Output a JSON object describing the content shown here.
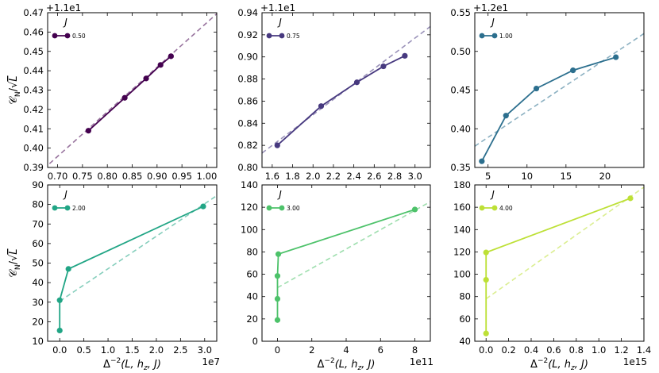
{
  "chart_data": [
    {
      "type": "line",
      "legend_title": "J",
      "series_label": "0.50",
      "color": "#44014f",
      "x": [
        0.762,
        0.835,
        0.878,
        0.907,
        0.928
      ],
      "y": [
        0.409,
        0.426,
        0.436,
        0.443,
        0.4475
      ],
      "fit": {
        "x0": 0.66,
        "y0": 0.3865,
        "x1": 1.025,
        "y1": 0.4706
      },
      "xlim": [
        0.68,
        1.02
      ],
      "ylim": [
        0.39,
        0.47
      ],
      "xticks": [
        0.7,
        0.75,
        0.8,
        0.85,
        0.9,
        0.95,
        1.0
      ],
      "xtick_labels": [
        "0.70",
        "0.75",
        "0.80",
        "0.85",
        "0.90",
        "0.95",
        "1.00"
      ],
      "yticks": [
        0.39,
        0.4,
        0.41,
        0.42,
        0.43,
        0.44,
        0.45,
        0.46,
        0.47
      ],
      "ytick_labels": [
        "0.39",
        "0.40",
        "0.41",
        "0.42",
        "0.43",
        "0.44",
        "0.45",
        "0.46",
        "0.47"
      ],
      "offset_label": "+1.1e1",
      "xlabel": "",
      "ylabel": "C_N/√L"
    },
    {
      "type": "line",
      "legend_title": "J",
      "series_label": "0.75",
      "color": "#47397f",
      "x": [
        1.65,
        2.08,
        2.43,
        2.69,
        2.9
      ],
      "y": [
        0.82,
        0.8555,
        0.877,
        0.8915,
        0.901
      ],
      "fit": {
        "x0": 1.5,
        "y0": 0.813,
        "x1": 3.15,
        "y1": 0.9275
      },
      "xlim": [
        1.5,
        3.15
      ],
      "ylim": [
        0.8,
        0.94
      ],
      "xticks": [
        1.6,
        1.8,
        2.0,
        2.2,
        2.4,
        2.6,
        2.8,
        3.0
      ],
      "xtick_labels": [
        "1.6",
        "1.8",
        "2.0",
        "2.2",
        "2.4",
        "2.6",
        "2.8",
        "3.0"
      ],
      "yticks": [
        0.8,
        0.82,
        0.84,
        0.86,
        0.88,
        0.9,
        0.92,
        0.94
      ],
      "ytick_labels": [
        "0.80",
        "0.82",
        "0.84",
        "0.86",
        "0.88",
        "0.90",
        "0.92",
        "0.94"
      ],
      "offset_label": "+1.1e1",
      "xlabel": "",
      "ylabel": ""
    },
    {
      "type": "line",
      "legend_title": "J",
      "series_label": "1.00",
      "color": "#2c6f8e",
      "x": [
        4.2,
        7.3,
        11.2,
        15.9,
        21.4
      ],
      "y": [
        0.358,
        0.417,
        0.452,
        0.4755,
        0.4925
      ],
      "fit": {
        "x0": 3.3,
        "y0": 0.3775,
        "x1": 25.0,
        "y1": 0.523
      },
      "xlim": [
        3.3,
        25.0
      ],
      "ylim": [
        0.35,
        0.55
      ],
      "xticks": [
        5,
        10,
        15,
        20
      ],
      "xtick_labels": [
        "5",
        "10",
        "15",
        "20"
      ],
      "yticks": [
        0.35,
        0.4,
        0.45,
        0.5,
        0.55
      ],
      "ytick_labels": [
        "0.35",
        "0.40",
        "0.45",
        "0.50",
        "0.55"
      ],
      "offset_label": "+1.2e1",
      "xlabel": "",
      "ylabel": ""
    },
    {
      "type": "line",
      "legend_title": "J",
      "series_label": "2.00",
      "color": "#21a585",
      "x": [
        0.0,
        0.0,
        0.18,
        2.97
      ],
      "y": [
        15.5,
        31.0,
        47.0,
        79.0
      ],
      "fit": {
        "x0": 0.0,
        "y0": 30.5,
        "x1": 3.25,
        "y1": 84.5
      },
      "xlim": [
        -0.25,
        3.25
      ],
      "ylim": [
        10,
        90
      ],
      "xticks": [
        0.0,
        0.5,
        1.0,
        1.5,
        2.0,
        2.5,
        3.0
      ],
      "xtick_labels": [
        "0.0",
        "0.5",
        "1.0",
        "1.5",
        "2.0",
        "2.5",
        "3.0"
      ],
      "yticks": [
        10,
        20,
        30,
        40,
        50,
        60,
        70,
        80,
        90
      ],
      "ytick_labels": [
        "10",
        "20",
        "30",
        "40",
        "50",
        "60",
        "70",
        "80",
        "90"
      ],
      "offset_label": "1e7",
      "xlabel": "Δ^-2(L, h_z, J)",
      "ylabel": "C_N/√L"
    },
    {
      "type": "line",
      "legend_title": "J",
      "series_label": "3.00",
      "color": "#4dc26a",
      "x": [
        0.0,
        0.0,
        0.0,
        0.05,
        8.0
      ],
      "y": [
        19.0,
        38.0,
        58.5,
        78.0,
        118.0
      ],
      "fit": {
        "x0": 0.0,
        "y0": 48.0,
        "x1": 8.9,
        "y1": 125.0
      },
      "xlim": [
        -0.9,
        8.9
      ],
      "ylim": [
        0,
        140
      ],
      "xticks": [
        0,
        2,
        4,
        6,
        8
      ],
      "xtick_labels": [
        "0",
        "2",
        "4",
        "6",
        "8"
      ],
      "yticks": [
        0,
        20,
        40,
        60,
        80,
        100,
        120,
        140
      ],
      "ytick_labels": [
        "0",
        "20",
        "40",
        "60",
        "80",
        "100",
        "120",
        "140"
      ],
      "offset_label": "1e11",
      "xlabel": "Δ^-2(L, h_z, J)",
      "ylabel": ""
    },
    {
      "type": "line",
      "legend_title": "J",
      "series_label": "4.00",
      "color": "#bde036",
      "x": [
        0.0,
        0.0,
        0.0,
        1.28
      ],
      "y": [
        47.0,
        95.0,
        119.5,
        168.0
      ],
      "fit": {
        "x0": 0.0,
        "y0": 78.0,
        "x1": 1.4,
        "y1": 178.0
      },
      "xlim": [
        -0.1,
        1.4
      ],
      "ylim": [
        40,
        180
      ],
      "xticks": [
        0.0,
        0.2,
        0.4,
        0.6,
        0.8,
        1.0,
        1.2,
        1.4
      ],
      "xtick_labels": [
        "0.0",
        "0.2",
        "0.4",
        "0.6",
        "0.8",
        "1.0",
        "1.2",
        "1.4"
      ],
      "yticks": [
        40,
        60,
        80,
        100,
        120,
        140,
        160,
        180
      ],
      "ytick_labels": [
        "40",
        "60",
        "80",
        "100",
        "120",
        "140",
        "160",
        "180"
      ],
      "offset_label": "1e15",
      "xlabel": "Δ^-2(L, h_z, J)",
      "ylabel": ""
    }
  ]
}
